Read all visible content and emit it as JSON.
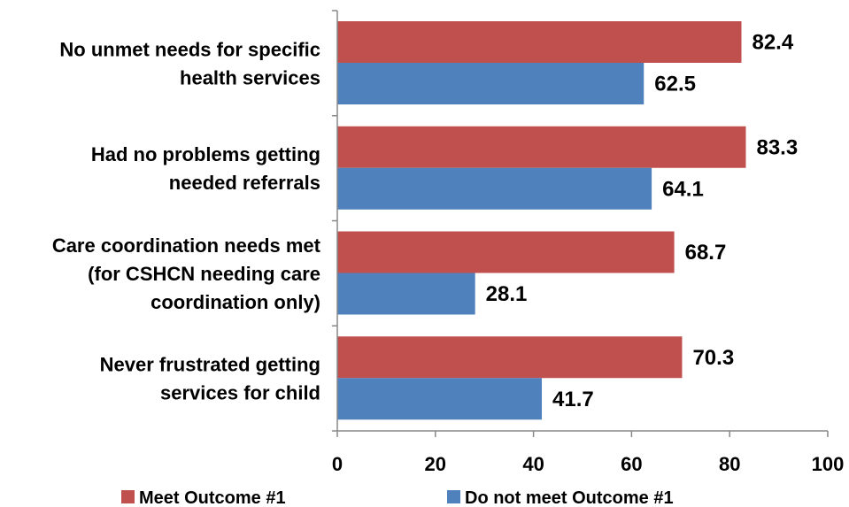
{
  "chart_data": {
    "type": "bar",
    "orientation": "horizontal",
    "categories": [
      [
        "No unmet needs for specific",
        "health services"
      ],
      [
        "Had no problems getting",
        "needed referrals"
      ],
      [
        "Care coordination needs met",
        "(for CSHCN needing care",
        "coordination only)"
      ],
      [
        "Never frustrated getting",
        "services for child"
      ]
    ],
    "series": [
      {
        "name": "Meet Outcome #1",
        "color": "#C0504D",
        "values": [
          82.4,
          83.3,
          68.7,
          70.3
        ]
      },
      {
        "name": "Do not meet Outcome #1",
        "color": "#4F81BD",
        "values": [
          62.5,
          64.1,
          28.1,
          41.7
        ]
      }
    ],
    "value_labels": [
      [
        "82.4",
        "83.3",
        "68.7",
        "70.3"
      ],
      [
        "62.5",
        "64.1",
        "28.1",
        "41.7"
      ]
    ],
    "xlim": [
      0,
      100
    ],
    "xticks": [
      "0",
      "20",
      "40",
      "60",
      "80",
      "100"
    ],
    "title": "",
    "xlabel": "",
    "ylabel": "",
    "grid": false,
    "legend_position": "bottom"
  }
}
